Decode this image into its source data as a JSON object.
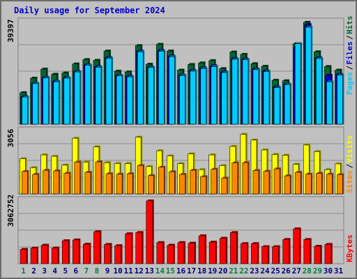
{
  "title": "Daily usage for September 2024",
  "colors": {
    "background": "#c0c0c0",
    "hits": "#006633",
    "files": "#0000cc",
    "pages": "#00ccff",
    "visits": "#ffff00",
    "sites": "#ff8800",
    "kbytes": "#ff0000",
    "weekend_label": "#008040",
    "weekday_label": "#000080"
  },
  "chart_data": [
    {
      "type": "bar",
      "name": "hits-files-pages",
      "max_label": "39397",
      "ylim": [
        0,
        39397
      ],
      "legend": [
        {
          "label": "Hits",
          "color": "#006633"
        },
        {
          "label": "Files",
          "color": "#0000cc"
        },
        {
          "label": "Pages",
          "color": "#00ccff"
        }
      ],
      "categories": [
        "1",
        "2",
        "3",
        "4",
        "5",
        "6",
        "7",
        "8",
        "9",
        "10",
        "11",
        "12",
        "13",
        "14",
        "15",
        "16",
        "17",
        "18",
        "19",
        "20",
        "21",
        "22",
        "23",
        "24",
        "25",
        "26",
        "27",
        "28",
        "29",
        "30",
        "31"
      ],
      "series": [
        {
          "name": "Hits",
          "values": [
            12200,
            17800,
            21300,
            19300,
            19800,
            23300,
            25000,
            24700,
            28300,
            20500,
            20200,
            30400,
            23200,
            30900,
            28300,
            20900,
            23100,
            23700,
            24600,
            21500,
            27900,
            27000,
            23400,
            22400,
            17000,
            16800,
            31100,
            39400,
            28000,
            22300,
            20900
          ]
        },
        {
          "name": "Files",
          "values": [
            10700,
            15800,
            18100,
            16600,
            18000,
            20400,
            23000,
            22300,
            25800,
            18900,
            18600,
            28300,
            22100,
            28500,
            26400,
            19000,
            20800,
            21800,
            22600,
            20200,
            25400,
            25200,
            21400,
            20600,
            14400,
            15500,
            30000,
            38500,
            25700,
            18900,
            19300
          ]
        },
        {
          "name": "Pages",
          "values": [
            10500,
            15700,
            17900,
            16400,
            17800,
            20200,
            22800,
            22000,
            25500,
            18700,
            18300,
            28000,
            21900,
            28200,
            26100,
            18800,
            20500,
            21500,
            22300,
            19900,
            25100,
            24900,
            21100,
            20300,
            14100,
            15300,
            31100,
            37500,
            25400,
            16400,
            19000
          ]
        }
      ]
    },
    {
      "type": "bar",
      "name": "visits-sites",
      "max_label": "3056",
      "ylim": [
        0,
        3056
      ],
      "legend": [
        {
          "label": "Visits",
          "color": "#ffff00"
        },
        {
          "label": "Sites",
          "color": "#ff8800"
        }
      ],
      "categories": [
        "1",
        "2",
        "3",
        "4",
        "5",
        "6",
        "7",
        "8",
        "9",
        "10",
        "11",
        "12",
        "13",
        "14",
        "15",
        "16",
        "17",
        "18",
        "19",
        "20",
        "21",
        "22",
        "23",
        "24",
        "25",
        "26",
        "27",
        "28",
        "29",
        "30",
        "31"
      ],
      "series": [
        {
          "name": "Visits",
          "values": [
            1710,
            1280,
            1900,
            1830,
            1400,
            2710,
            1550,
            2290,
            1520,
            1480,
            1480,
            2760,
            1330,
            2100,
            1850,
            1470,
            1950,
            1180,
            1900,
            1380,
            2310,
            2900,
            2620,
            2140,
            1920,
            1880,
            1440,
            2380,
            2060,
            1180,
            1460
          ]
        },
        {
          "name": "Sites",
          "values": [
            1090,
            950,
            1150,
            1120,
            1010,
            1550,
            1050,
            1560,
            980,
            960,
            980,
            1380,
            890,
            1300,
            1080,
            950,
            1150,
            840,
            1200,
            770,
            1510,
            1520,
            1140,
            1100,
            1220,
            880,
            1050,
            960,
            1000,
            960,
            940
          ]
        }
      ]
    },
    {
      "type": "bar",
      "name": "kbytes",
      "max_label": "3062752",
      "ylim": [
        0,
        3062752
      ],
      "legend": [
        {
          "label": "KBytes",
          "color": "#ff0000"
        }
      ],
      "categories": [
        "1",
        "2",
        "3",
        "4",
        "5",
        "6",
        "7",
        "8",
        "9",
        "10",
        "11",
        "12",
        "13",
        "14",
        "15",
        "16",
        "17",
        "18",
        "19",
        "20",
        "21",
        "22",
        "23",
        "24",
        "25",
        "26",
        "27",
        "28",
        "29",
        "30",
        "31"
      ],
      "series": [
        {
          "name": "KBytes",
          "values": [
            700000,
            760000,
            900000,
            760000,
            1120000,
            1160000,
            950000,
            1560000,
            940000,
            880000,
            1460000,
            1520000,
            3062752,
            1030000,
            900000,
            1030000,
            1000000,
            1360000,
            1050000,
            1240000,
            1520000,
            980000,
            980000,
            830000,
            830000,
            1180000,
            1700000,
            1180000,
            850000,
            940000,
            0
          ]
        }
      ]
    }
  ],
  "x_labels": [
    {
      "label": "1",
      "weekend": true
    },
    {
      "label": "2",
      "weekend": false
    },
    {
      "label": "3",
      "weekend": false
    },
    {
      "label": "4",
      "weekend": false
    },
    {
      "label": "5",
      "weekend": false
    },
    {
      "label": "6",
      "weekend": false
    },
    {
      "label": "7",
      "weekend": true
    },
    {
      "label": "8",
      "weekend": true
    },
    {
      "label": "9",
      "weekend": false
    },
    {
      "label": "10",
      "weekend": false
    },
    {
      "label": "11",
      "weekend": false
    },
    {
      "label": "12",
      "weekend": false
    },
    {
      "label": "13",
      "weekend": false
    },
    {
      "label": "14",
      "weekend": true
    },
    {
      "label": "15",
      "weekend": true
    },
    {
      "label": "16",
      "weekend": false
    },
    {
      "label": "17",
      "weekend": false
    },
    {
      "label": "18",
      "weekend": false
    },
    {
      "label": "19",
      "weekend": false
    },
    {
      "label": "20",
      "weekend": false
    },
    {
      "label": "21",
      "weekend": true
    },
    {
      "label": "22",
      "weekend": true
    },
    {
      "label": "23",
      "weekend": false
    },
    {
      "label": "24",
      "weekend": false
    },
    {
      "label": "25",
      "weekend": false
    },
    {
      "label": "26",
      "weekend": false
    },
    {
      "label": "27",
      "weekend": false
    },
    {
      "label": "28",
      "weekend": true
    },
    {
      "label": "29",
      "weekend": true
    },
    {
      "label": "30",
      "weekend": false
    },
    {
      "label": "31",
      "weekend": false
    }
  ]
}
